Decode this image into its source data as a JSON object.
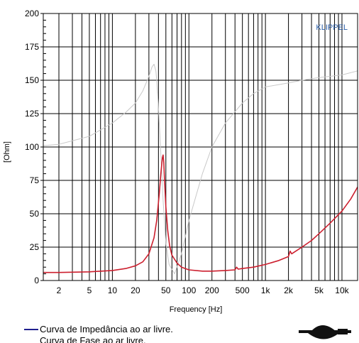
{
  "chart_data": {
    "type": "line",
    "title": "",
    "watermark": "KLIPPEL",
    "xlabel": "Frequency [Hz]",
    "ylabel": "[Ohm]",
    "xscale": "log",
    "xlim": [
      1.25,
      16000
    ],
    "ylim": [
      0,
      200
    ],
    "yticks": [
      0,
      25,
      50,
      75,
      100,
      125,
      150,
      175,
      200
    ],
    "xticks": [
      {
        "value": 2,
        "label": "2"
      },
      {
        "value": 5,
        "label": "5"
      },
      {
        "value": 10,
        "label": "10"
      },
      {
        "value": 20,
        "label": "20"
      },
      {
        "value": 50,
        "label": "50"
      },
      {
        "value": 100,
        "label": "100"
      },
      {
        "value": 200,
        "label": "200"
      },
      {
        "value": 500,
        "label": "500"
      },
      {
        "value": 1000,
        "label": "1k"
      },
      {
        "value": 2000,
        "label": "2k"
      },
      {
        "value": 5000,
        "label": "5k"
      },
      {
        "value": 10000,
        "label": "10k"
      }
    ],
    "grid": true,
    "legend_position": "bottom-left",
    "series": [
      {
        "name": "Curva de Impedância ao ar livre.",
        "color": "#cc1f2e",
        "x": [
          1.25,
          2,
          5,
          10,
          15,
          20,
          25,
          30,
          35,
          38,
          41,
          43,
          45,
          46,
          47,
          48,
          50,
          53,
          56,
          60,
          70,
          80,
          100,
          150,
          200,
          300,
          400,
          420,
          440,
          500,
          700,
          1000,
          1500,
          2000,
          2100,
          2200,
          2500,
          3000,
          4000,
          5000,
          7000,
          10000,
          13000,
          16000
        ],
        "y": [
          6,
          6,
          6.5,
          7.5,
          9,
          11,
          14,
          20,
          32,
          45,
          65,
          80,
          92,
          94,
          88,
          75,
          55,
          37,
          26,
          19,
          13,
          10,
          8,
          7,
          7,
          7.5,
          8,
          10,
          8.5,
          9,
          10,
          12,
          15,
          18,
          22,
          20,
          22,
          25,
          30,
          35,
          43,
          52,
          61,
          70
        ]
      },
      {
        "name": "",
        "color": "#c8c8c8",
        "x": [
          1.25,
          2,
          5,
          10,
          15,
          20,
          25,
          30,
          33,
          35,
          37,
          38,
          40,
          43,
          46,
          50,
          55,
          65,
          80,
          100,
          150,
          200,
          300,
          500,
          700,
          1000,
          2000,
          3000,
          5000,
          10000,
          16000
        ],
        "y": [
          101,
          102,
          108,
          118,
          126,
          133,
          142,
          153,
          160,
          162,
          157,
          150,
          130,
          95,
          60,
          28,
          12,
          5,
          20,
          45,
          80,
          100,
          118,
          133,
          140,
          145,
          148,
          150,
          152,
          154,
          157
        ]
      }
    ]
  },
  "legend": {
    "item1": "Curva de Impedância ao ar livre.",
    "item2": "Curva de Fase ao ar livre."
  }
}
